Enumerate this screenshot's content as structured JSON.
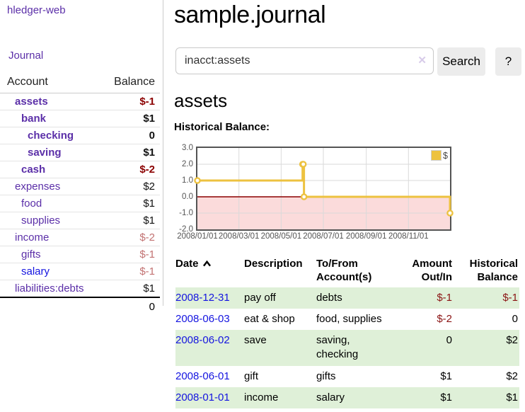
{
  "brand": "hledger-web",
  "nav": {
    "journal": "Journal"
  },
  "colors": {
    "link_purple": "#5b2fa8",
    "link_blue": "#1414e0",
    "negative_strong": "#8b0000",
    "negative_soft": "#c27272",
    "row_highlight_green": "#dff0d8",
    "series_gold": "#EDC240"
  },
  "sidebar": {
    "account_header": "Account",
    "balance_header": "Balance",
    "accounts": [
      {
        "name": "assets",
        "balance": "$-1",
        "depth": 0,
        "inacct": true
      },
      {
        "name": "bank",
        "balance": "$1",
        "depth": 1,
        "inacct": true
      },
      {
        "name": "checking",
        "balance": "0",
        "depth": 2,
        "inacct": true
      },
      {
        "name": "saving",
        "balance": "$1",
        "depth": 2,
        "inacct": true
      },
      {
        "name": "cash",
        "balance": "$-2",
        "depth": 1,
        "inacct": true
      },
      {
        "name": "expenses",
        "balance": "$2",
        "depth": 0
      },
      {
        "name": "food",
        "balance": "$1",
        "depth": 1
      },
      {
        "name": "supplies",
        "balance": "$1",
        "depth": 1
      },
      {
        "name": "income",
        "balance": "$-2",
        "depth": 0
      },
      {
        "name": "gifts",
        "balance": "$-1",
        "depth": 1
      },
      {
        "name": "salary",
        "balance": "$-1",
        "depth": 1,
        "unvisited": true
      },
      {
        "name": "liabilities:debts",
        "balance": "$1",
        "depth": 0
      }
    ],
    "total": "0"
  },
  "main": {
    "title": "sample.journal",
    "search": {
      "value": "inacct:assets",
      "clear_label": "✕",
      "button_label": "Search",
      "help_label": "?"
    },
    "account_heading": "assets",
    "chart_label": "Historical Balance:"
  },
  "chart_data": {
    "type": "line",
    "step": "after",
    "title": "Historical Balance:",
    "xlim": [
      "2008-01-01",
      "2008-12-31"
    ],
    "ylim": [
      -2,
      3
    ],
    "y_ticks": [
      3,
      2,
      1,
      0,
      -1,
      -2
    ],
    "x_ticks": [
      "2008/01/01",
      "2008/03/01",
      "2008/05/01",
      "2008/07/01",
      "2008/09/01",
      "2008/11/01"
    ],
    "series": [
      {
        "name": "$",
        "color": "#EDC240",
        "points": [
          [
            "2008-01-01",
            1
          ],
          [
            "2008-06-01",
            2
          ],
          [
            "2008-06-02",
            2
          ],
          [
            "2008-06-03",
            0
          ],
          [
            "2008-12-31",
            -1
          ]
        ]
      }
    ],
    "legend_position": "top-right",
    "grid": true,
    "negative_fill": "#fbdbdb",
    "zero_line_color": "#8b0000"
  },
  "register": {
    "headers": {
      "date": "Date",
      "description": "Description",
      "accounts": "To/From Account(s)",
      "amount": "Amount Out/In",
      "balance": "Historical Balance"
    },
    "rows": [
      {
        "date": "2008-12-31",
        "description": "pay off",
        "accounts": "debts",
        "amount": "$-1",
        "balance": "$-1"
      },
      {
        "date": "2008-06-03",
        "description": "eat & shop",
        "accounts": "food, supplies",
        "amount": "$-2",
        "balance": "0"
      },
      {
        "date": "2008-06-02",
        "description": "save",
        "accounts": "saving, checking",
        "amount": "0",
        "balance": "$2"
      },
      {
        "date": "2008-06-01",
        "description": "gift",
        "accounts": "gifts",
        "amount": "$1",
        "balance": "$2"
      },
      {
        "date": "2008-01-01",
        "description": "income",
        "accounts": "salary",
        "amount": "$1",
        "balance": "$1"
      }
    ]
  }
}
